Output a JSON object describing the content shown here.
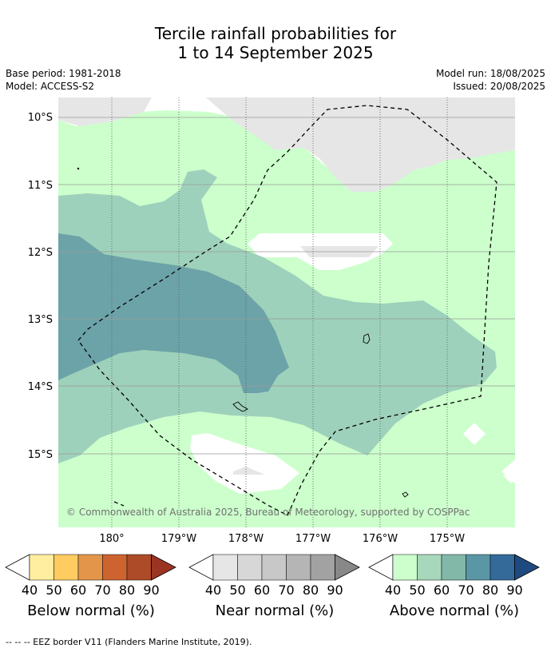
{
  "title": {
    "line1": "Tercile rainfall probabilities for",
    "line2": "1 to 14 September 2025"
  },
  "meta": {
    "base_period": "Base period: 1981-2018",
    "model": "Model: ACCESS-S2",
    "model_run": "Model run: 18/08/2025",
    "issued": "Issued: 20/08/2025"
  },
  "map": {
    "lat_labels": [
      "10°S",
      "11°S",
      "12°S",
      "13°S",
      "14°S",
      "15°S"
    ],
    "lon_labels": [
      "180°",
      "179°W",
      "178°W",
      "177°W",
      "176°W",
      "175°W"
    ],
    "copyright": "© Commonwealth of Australia 2025, Bureau of Meteorology, supported by COSPPac",
    "colors": {
      "near_normal_light": "#e6e6e6",
      "above_40_50": "#ccffcc",
      "above_50_60": "#9ed1bb",
      "above_60_70": "#6ca3a8"
    }
  },
  "colorbars": [
    {
      "title": "Below normal (%)",
      "ticks": [
        "40",
        "50",
        "60",
        "70",
        "80",
        "90"
      ],
      "colors": [
        "#ffeea0",
        "#fecc60",
        "#e3964a",
        "#cd6430",
        "#ad4a28",
        "#9b3422"
      ]
    },
    {
      "title": "Near normal (%)",
      "ticks": [
        "40",
        "50",
        "60",
        "70",
        "80",
        "90"
      ],
      "colors": [
        "#e6e6e6",
        "#d7d7d7",
        "#c8c8c8",
        "#b5b5b5",
        "#a2a2a2",
        "#888888"
      ]
    },
    {
      "title": "Above normal (%)",
      "ticks": [
        "40",
        "50",
        "60",
        "70",
        "80",
        "90"
      ],
      "colors": [
        "#ccffcc",
        "#a8d8bb",
        "#82b8a8",
        "#5a96a4",
        "#336a9a",
        "#1e4a80"
      ]
    }
  ],
  "footnote": "--  --  -- EEZ border V11 (Flanders Marine Institute, 2019)."
}
